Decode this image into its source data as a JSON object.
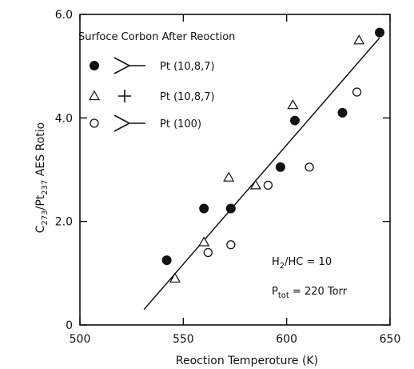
{
  "chart_data": {
    "type": "scatter",
    "title": "Surfoce Corbon After Reoction",
    "xlabel": "Reoction Temperoture (K)",
    "ylabel": {
      "base": "C",
      "sub1": "273",
      "mid": "/Pt",
      "sub2": "237",
      "tail": " AES Rotio"
    },
    "xlim": [
      500,
      650
    ],
    "ylim": [
      0,
      6.0
    ],
    "xticks": [
      500,
      550,
      600,
      650
    ],
    "yticks": [
      0,
      2.0,
      4.0,
      6.0
    ],
    "ytick_labels": [
      "0",
      "2.0",
      "4.0",
      "6.0"
    ],
    "grid": false,
    "legend_position": "top-left",
    "series": [
      {
        "name": "Pt (10,8,7)",
        "legend_symbol": "Y",
        "marker": "filled-circle",
        "points": [
          [
            542,
            1.25
          ],
          [
            560,
            2.25
          ],
          [
            573,
            2.25
          ],
          [
            597,
            3.05
          ],
          [
            604,
            3.95
          ],
          [
            627,
            4.1
          ],
          [
            645,
            5.65
          ]
        ]
      },
      {
        "name": "Pt (10,8,7)",
        "legend_symbol": "+",
        "marker": "open-triangle",
        "points": [
          [
            546,
            0.9
          ],
          [
            560,
            1.6
          ],
          [
            572,
            2.85
          ],
          [
            585,
            2.7
          ],
          [
            603,
            4.25
          ],
          [
            635,
            5.5
          ]
        ]
      },
      {
        "name": "Pt (100)",
        "legend_symbol": "Y",
        "marker": "open-circle",
        "points": [
          [
            562,
            1.4
          ],
          [
            573,
            1.55
          ],
          [
            591,
            2.7
          ],
          [
            611,
            3.05
          ],
          [
            634,
            4.5
          ]
        ]
      }
    ],
    "fit_line": {
      "x": [
        531,
        645
      ],
      "y": [
        0.3,
        5.55
      ]
    },
    "annotations": [
      {
        "base": "H",
        "sub": "2",
        "tail": "/HC = 10"
      },
      {
        "base": "P",
        "sub": "tot",
        "tail": " = 220 Torr"
      }
    ]
  }
}
